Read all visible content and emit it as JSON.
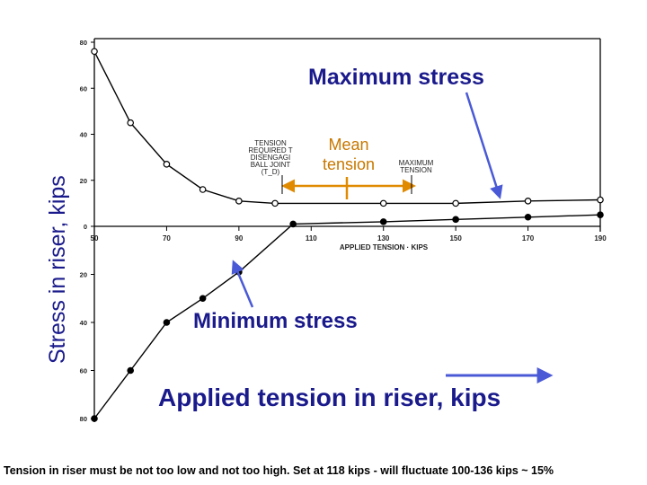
{
  "chart_data": {
    "type": "line",
    "x_axis": {
      "label": "APPLIED TENSION · KIPS",
      "min": 50,
      "max": 190,
      "ticks": [
        "50",
        "70",
        "90",
        "110",
        "130",
        "150",
        "170",
        "190"
      ]
    },
    "y_axis_upper": {
      "min": 0,
      "max": 80,
      "ticks": [
        "0",
        "20",
        "40",
        "60",
        "80"
      ]
    },
    "y_axis_lower": {
      "min": -80,
      "max": 0,
      "ticks": [
        "20",
        "40",
        "60",
        "80"
      ]
    },
    "series": [
      {
        "marker": "open-circle",
        "points": [
          [
            50,
            76
          ],
          [
            60,
            45
          ],
          [
            70,
            27
          ],
          [
            80,
            16
          ],
          [
            90,
            11
          ],
          [
            100,
            10
          ],
          [
            130,
            10
          ],
          [
            150,
            10
          ],
          [
            170,
            11
          ],
          [
            190,
            11.5
          ]
        ]
      },
      {
        "marker": "filled-circle",
        "points": [
          [
            50,
            -80
          ],
          [
            60,
            -60
          ],
          [
            70,
            -40
          ],
          [
            80,
            -30
          ],
          [
            90,
            -19
          ],
          [
            105,
            1
          ],
          [
            130,
            2
          ],
          [
            150,
            3
          ],
          [
            170,
            4
          ],
          [
            190,
            5
          ]
        ]
      }
    ],
    "annotations": {
      "tension_required": "TENSION\nREQUIRED T\nDISENGAGI\nBALL JOINT\n(T_D)",
      "maximum_tension": "MAXIMUM\nTENSION"
    }
  },
  "labels": {
    "y_label": "Stress in riser,  kips",
    "max_stress": "Maximum stress",
    "mean_tension": "Mean\ntension",
    "min_stress": "Minimum stress",
    "applied_tension": "Applied tension in riser,  kips",
    "caption": "Tension in riser must be not too low and not too high. Set at 118 kips - will fluctuate 100-136 kips ~ 15%"
  },
  "colors": {
    "annotation_text": "#1a1a8c",
    "arrow_blue": "#4a5ad6",
    "mean_orange": "#e08a00",
    "curve": "#000000"
  }
}
